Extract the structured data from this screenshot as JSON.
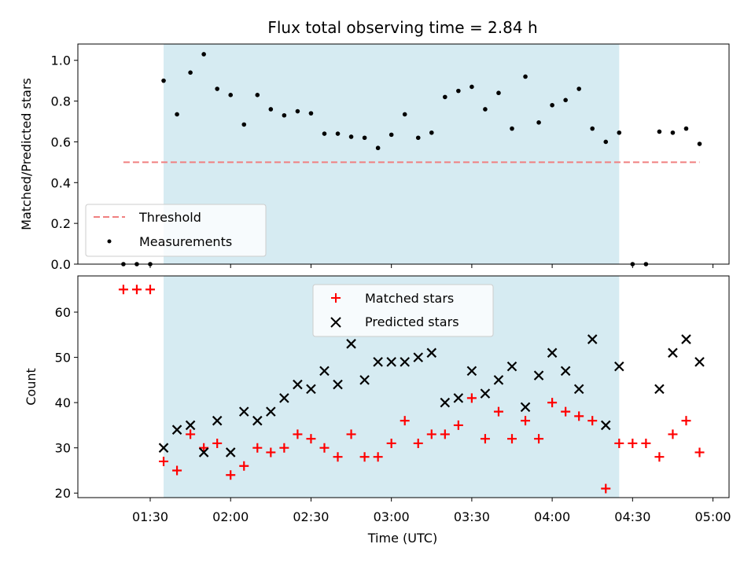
{
  "chart_data": [
    {
      "type": "scatter",
      "title": "Flux total observing time = 2.84 h",
      "xlabel": "",
      "ylabel": "Matched/Predicted stars",
      "xlim": [
        "01:03",
        "05:06"
      ],
      "ylim": [
        0,
        1.08
      ],
      "yticks": [
        0.0,
        0.2,
        0.4,
        0.6,
        0.8,
        1.0
      ],
      "ytick_labels": [
        "0.0",
        "0.2",
        "0.4",
        "0.6",
        "0.8",
        "1.0"
      ],
      "shaded_span": [
        "01:35",
        "04:25"
      ],
      "shaded_color": "#add8e6",
      "legend_position": "lower left",
      "threshold": {
        "name": "Threshold",
        "y": 0.5,
        "x_range": [
          "01:20",
          "04:55"
        ],
        "color": "#f08080",
        "style": "dashed"
      },
      "series": [
        {
          "name": "Measurements",
          "color": "#000000",
          "marker": "dot",
          "x": [
            "01:20",
            "01:25",
            "01:30",
            "01:35",
            "01:40",
            "01:45",
            "01:50",
            "01:55",
            "02:00",
            "02:05",
            "02:10",
            "02:15",
            "02:20",
            "02:25",
            "02:30",
            "02:35",
            "02:40",
            "02:45",
            "02:50",
            "02:55",
            "03:00",
            "03:05",
            "03:10",
            "03:15",
            "03:20",
            "03:25",
            "03:30",
            "03:35",
            "03:40",
            "03:45",
            "03:50",
            "03:55",
            "04:00",
            "04:05",
            "04:10",
            "04:15",
            "04:20",
            "04:25",
            "04:30",
            "04:35",
            "04:40",
            "04:45",
            "04:50",
            "04:55"
          ],
          "y": [
            0.0,
            0.0,
            0.0,
            0.9,
            0.735,
            0.94,
            1.03,
            0.86,
            0.83,
            0.685,
            0.83,
            0.76,
            0.73,
            0.75,
            0.74,
            0.64,
            0.64,
            0.625,
            0.62,
            0.57,
            0.635,
            0.735,
            0.62,
            0.645,
            0.82,
            0.85,
            0.87,
            0.76,
            0.84,
            0.665,
            0.92,
            0.695,
            0.78,
            0.805,
            0.86,
            0.665,
            0.6,
            0.645,
            0.0,
            0.0,
            0.65,
            0.645,
            0.665,
            0.59
          ]
        }
      ]
    },
    {
      "type": "scatter",
      "title": "",
      "xlabel": "Time (UTC)",
      "ylabel": "Count",
      "xlim": [
        "01:03",
        "05:06"
      ],
      "ylim": [
        19,
        68
      ],
      "yticks": [
        20,
        30,
        40,
        50,
        60
      ],
      "ytick_labels": [
        "20",
        "30",
        "40",
        "50",
        "60"
      ],
      "xticks": [
        "01:30",
        "02:00",
        "02:30",
        "03:00",
        "03:30",
        "04:00",
        "04:30",
        "05:00"
      ],
      "shaded_span": [
        "01:35",
        "04:25"
      ],
      "shaded_color": "#add8e6",
      "legend_position": "upper center",
      "series": [
        {
          "name": "Matched stars",
          "color": "#ff0000",
          "marker": "plus",
          "x": [
            "01:20",
            "01:25",
            "01:30",
            "01:35",
            "01:40",
            "01:45",
            "01:50",
            "01:55",
            "02:00",
            "02:05",
            "02:10",
            "02:15",
            "02:20",
            "02:25",
            "02:30",
            "02:35",
            "02:40",
            "02:45",
            "02:50",
            "02:55",
            "03:00",
            "03:05",
            "03:10",
            "03:15",
            "03:20",
            "03:25",
            "03:30",
            "03:35",
            "03:40",
            "03:45",
            "03:50",
            "03:55",
            "04:00",
            "04:05",
            "04:10",
            "04:15",
            "04:20",
            "04:25",
            "04:30",
            "04:35",
            "04:40",
            "04:45",
            "04:50",
            "04:55"
          ],
          "y": [
            65,
            65,
            65,
            27,
            25,
            33,
            30,
            31,
            24,
            26,
            30,
            29,
            30,
            33,
            32,
            30,
            28,
            33,
            28,
            28,
            31,
            36,
            31,
            33,
            33,
            35,
            41,
            32,
            38,
            32,
            36,
            32,
            40,
            38,
            37,
            36,
            21,
            31,
            31,
            31,
            28,
            33,
            36,
            29
          ]
        },
        {
          "name": "Predicted stars",
          "color": "#000000",
          "marker": "x",
          "x": [
            "01:35",
            "01:40",
            "01:45",
            "01:50",
            "01:55",
            "02:00",
            "02:05",
            "02:10",
            "02:15",
            "02:20",
            "02:25",
            "02:30",
            "02:35",
            "02:40",
            "02:45",
            "02:50",
            "02:55",
            "03:00",
            "03:05",
            "03:10",
            "03:15",
            "03:20",
            "03:25",
            "03:30",
            "03:35",
            "03:40",
            "03:45",
            "03:50",
            "03:55",
            "04:00",
            "04:05",
            "04:10",
            "04:15",
            "04:20",
            "04:25",
            "04:40",
            "04:45",
            "04:50",
            "04:55"
          ],
          "y": [
            30,
            34,
            35,
            29,
            36,
            29,
            38,
            36,
            38,
            41,
            44,
            43,
            47,
            44,
            53,
            45,
            49,
            49,
            49,
            50,
            51,
            40,
            41,
            47,
            42,
            45,
            48,
            39,
            46,
            51,
            47,
            43,
            54,
            35,
            48,
            43,
            51,
            54,
            49
          ]
        }
      ]
    }
  ]
}
